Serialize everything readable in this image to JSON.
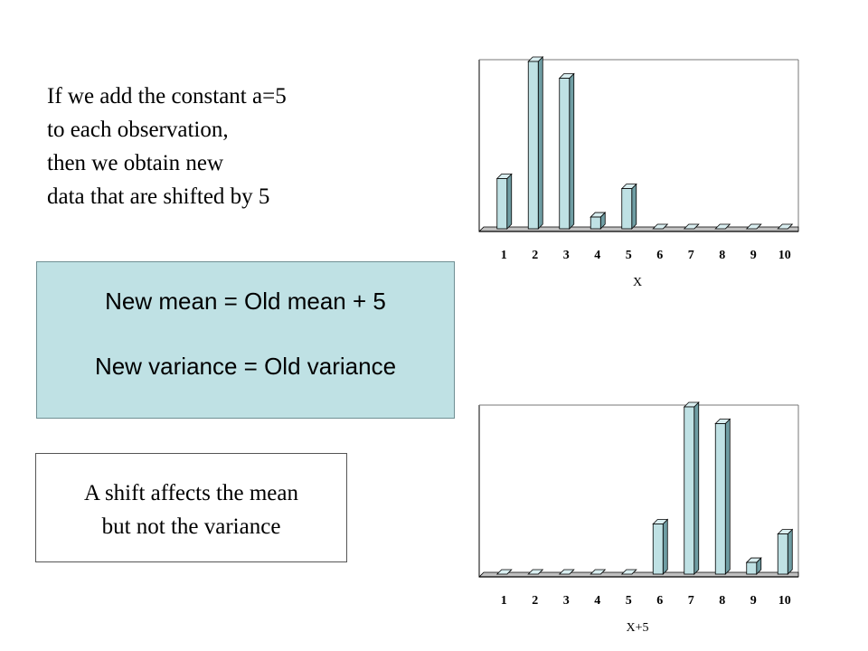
{
  "intro": {
    "lines": [
      "If we add the constant a=5",
      "to each observation,",
      "then we obtain new",
      "data that are shifted by 5"
    ]
  },
  "formulas": {
    "mean": "New mean = Old mean + 5",
    "variance": "New variance = Old variance"
  },
  "note": {
    "line1": "A shift affects the mean",
    "line2": "but not the variance"
  },
  "colors": {
    "bar_fill": "#bfe1e4",
    "bar_side": "#6f9da3",
    "bar_top": "#d9eef0",
    "bar_stroke": "#000000",
    "box_fill": "#bfe1e4"
  },
  "chart_data": [
    {
      "type": "bar",
      "categories": [
        "1",
        "2",
        "3",
        "4",
        "5",
        "6",
        "7",
        "8",
        "9",
        "10"
      ],
      "values": [
        3,
        10,
        9,
        0.7,
        2.4,
        0,
        0,
        0,
        0,
        0
      ],
      "title": "",
      "xlabel": "X",
      "ylabel": "",
      "ylim": [
        0,
        10
      ],
      "grid": false,
      "style": "3d-shaded"
    },
    {
      "type": "bar",
      "categories": [
        "1",
        "2",
        "3",
        "4",
        "5",
        "6",
        "7",
        "8",
        "9",
        "10"
      ],
      "values": [
        0,
        0,
        0,
        0,
        0,
        3,
        10,
        9,
        0.7,
        2.4
      ],
      "title": "",
      "xlabel": "X+5",
      "ylabel": "",
      "ylim": [
        0,
        10
      ],
      "grid": false,
      "style": "3d-shaded"
    }
  ]
}
